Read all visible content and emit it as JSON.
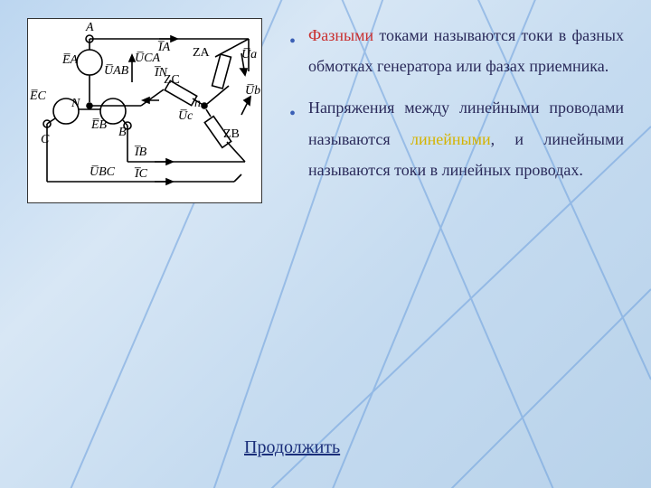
{
  "background": {
    "gradient_colors": [
      "#bcd6f0",
      "#d8e7f5",
      "#c5dbf0",
      "#b8d2ea"
    ],
    "line_color": "#5a8fd6",
    "line_width": 2
  },
  "diagram": {
    "background": "#ffffff",
    "stroke": "#000000",
    "labels": {
      "A": "A",
      "B": "B",
      "C": "C",
      "N": "N",
      "n": "n",
      "EA": "E̅A",
      "EB": "E̅B",
      "EC": "E̅C",
      "IA": "I̅A",
      "IB": "I̅B",
      "IC": "I̅C",
      "IN": "I̅N",
      "UAB": "U̅AB",
      "UBC": "U̅BC",
      "UCA": "U̅CA",
      "Ua": "U̅a",
      "Ub": "U̅b",
      "Uc": "U̅c",
      "ZA": "ZA",
      "ZB": "ZB",
      "ZC": "ZC"
    }
  },
  "bullets": [
    {
      "segments": [
        {
          "text": "Фазными",
          "class": "hl-red"
        },
        {
          "text": " токами называются токи в фазных обмотках генератора или фазах приемника."
        }
      ]
    },
    {
      "segments": [
        {
          "text": "Напряжения между линейными проводами называются "
        },
        {
          "text": "линейными",
          "class": "hl-yellow"
        },
        {
          "text": ", и линейными называются токи в линейных проводах."
        }
      ]
    }
  ],
  "continue_label": "Продолжить",
  "text_color": "#2a2a5a",
  "bullet_color": "#3a5fb5",
  "highlight_red": "#c93030",
  "highlight_yellow": "#d4b300",
  "link_color": "#1a2e7a",
  "font_size_body": 18,
  "font_size_link": 20
}
